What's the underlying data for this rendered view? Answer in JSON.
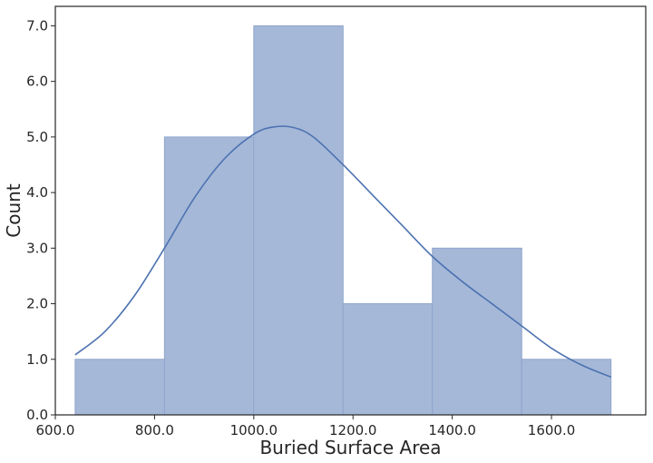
{
  "chart_data": {
    "type": "bar",
    "subtype": "histogram-with-kde",
    "title": "",
    "xlabel": "Buried Surface Area",
    "ylabel": "Count",
    "xlim": [
      600,
      1790
    ],
    "ylim": [
      0,
      7.35
    ],
    "grid": false,
    "x_ticks": [
      600,
      800,
      1000,
      1200,
      1400,
      1600
    ],
    "x_tick_labels": [
      "600.0",
      "800.0",
      "1000.0",
      "1200.0",
      "1400.0",
      "1600.0"
    ],
    "y_ticks": [
      0,
      1,
      2,
      3,
      4,
      5,
      6,
      7
    ],
    "y_tick_labels": [
      "0.0",
      "1.0",
      "2.0",
      "3.0",
      "4.0",
      "5.0",
      "6.0",
      "7.0"
    ],
    "bins": [
      {
        "x0": 640,
        "x1": 820,
        "count": 1
      },
      {
        "x0": 820,
        "x1": 1000,
        "count": 5
      },
      {
        "x0": 1000,
        "x1": 1180,
        "count": 7
      },
      {
        "x0": 1180,
        "x1": 1360,
        "count": 2
      },
      {
        "x0": 1360,
        "x1": 1540,
        "count": 3
      },
      {
        "x0": 1540,
        "x1": 1720,
        "count": 1
      }
    ],
    "kde": {
      "x": [
        640,
        700,
        760,
        820,
        880,
        940,
        1000,
        1040,
        1080,
        1120,
        1180,
        1240,
        1300,
        1360,
        1420,
        1480,
        1540,
        1600,
        1660,
        1720
      ],
      "y": [
        1.08,
        1.5,
        2.15,
        3.0,
        3.9,
        4.6,
        5.05,
        5.18,
        5.17,
        5.0,
        4.5,
        3.95,
        3.4,
        2.85,
        2.4,
        2.0,
        1.6,
        1.2,
        0.9,
        0.68
      ]
    },
    "colors": {
      "bar_fill": "#a5b8d8",
      "bar_edge": "#8fa5cc",
      "kde_line": "#4c72b0",
      "axes": "#262626"
    }
  }
}
